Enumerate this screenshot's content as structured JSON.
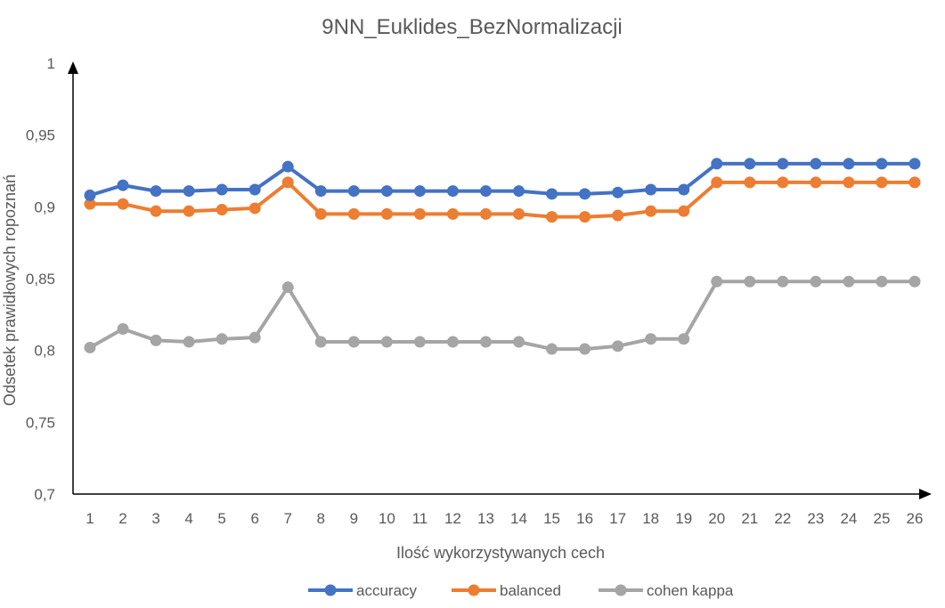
{
  "chart_data": {
    "type": "line",
    "title": "9NN_Euklides_BezNormalizacji",
    "xlabel": "Ilość wykorzystywanych cech",
    "ylabel": "Odsetek prawidłowych ropoznań",
    "categories": [
      "1",
      "2",
      "3",
      "4",
      "5",
      "6",
      "7",
      "8",
      "9",
      "10",
      "11",
      "12",
      "13",
      "14",
      "15",
      "16",
      "17",
      "18",
      "19",
      "20",
      "21",
      "22",
      "23",
      "24",
      "25",
      "26"
    ],
    "ylim": [
      0.7,
      1
    ],
    "yticks": [
      {
        "value": 0.7,
        "label": "0,7"
      },
      {
        "value": 0.75,
        "label": "0,75"
      },
      {
        "value": 0.8,
        "label": "0,8"
      },
      {
        "value": 0.85,
        "label": "0,85"
      },
      {
        "value": 0.9,
        "label": "0,9"
      },
      {
        "value": 0.95,
        "label": "0,95"
      },
      {
        "value": 1,
        "label": "1"
      }
    ],
    "grid": false,
    "legend_position": "bottom",
    "series": [
      {
        "name": "accuracy",
        "color": "#4472C4",
        "values": [
          0.908,
          0.915,
          0.911,
          0.911,
          0.912,
          0.912,
          0.928,
          0.911,
          0.911,
          0.911,
          0.911,
          0.911,
          0.911,
          0.911,
          0.909,
          0.909,
          0.91,
          0.912,
          0.912,
          0.93,
          0.93,
          0.93,
          0.93,
          0.93,
          0.93,
          0.93
        ]
      },
      {
        "name": "balanced",
        "color": "#ED7D31",
        "values": [
          0.902,
          0.902,
          0.897,
          0.897,
          0.898,
          0.899,
          0.917,
          0.895,
          0.895,
          0.895,
          0.895,
          0.895,
          0.895,
          0.895,
          0.893,
          0.893,
          0.894,
          0.897,
          0.897,
          0.917,
          0.917,
          0.917,
          0.917,
          0.917,
          0.917,
          0.917
        ]
      },
      {
        "name": "cohen kappa",
        "color": "#A5A5A5",
        "values": [
          0.802,
          0.815,
          0.807,
          0.806,
          0.808,
          0.809,
          0.844,
          0.806,
          0.806,
          0.806,
          0.806,
          0.806,
          0.806,
          0.806,
          0.801,
          0.801,
          0.803,
          0.808,
          0.808,
          0.848,
          0.848,
          0.848,
          0.848,
          0.848,
          0.848,
          0.848
        ]
      }
    ]
  }
}
